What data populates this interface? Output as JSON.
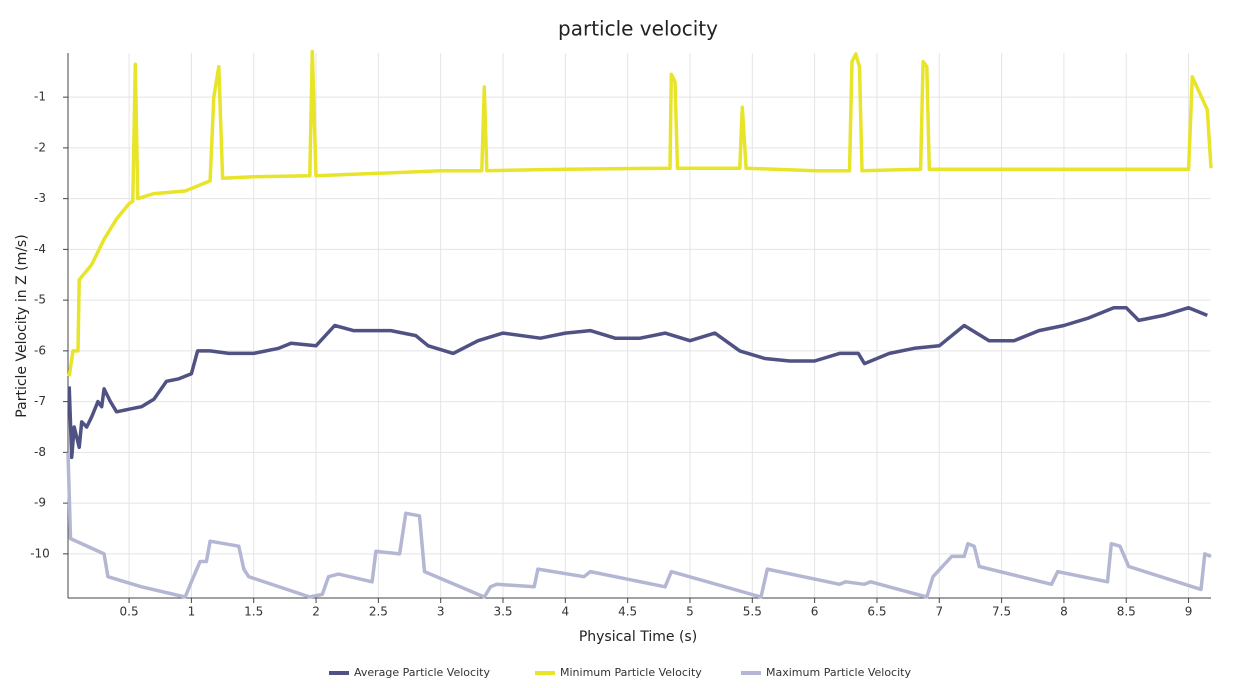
{
  "chart_data": {
    "type": "line",
    "title": "particle velocity",
    "x_label": "Physical Time (s)",
    "y_label": "Particle Velocity in Z (m/s)",
    "xlim": [
      0.01,
      9.18
    ],
    "ylim": [
      -10.87,
      -0.13
    ],
    "xticks": [
      0.5,
      1,
      1.5,
      2,
      2.5,
      3,
      3.5,
      4,
      4.5,
      5,
      5.5,
      6,
      6.5,
      7,
      7.5,
      8,
      8.5,
      9
    ],
    "yticks": [
      -10,
      -9,
      -8,
      -7,
      -6,
      -5,
      -4,
      -3,
      -2,
      -1
    ],
    "grid": true,
    "legend": "bottom",
    "series": [
      {
        "name": "Average Particle Velocity",
        "color": "#4f5283",
        "x": [
          0.02,
          0.04,
          0.06,
          0.1,
          0.12,
          0.16,
          0.2,
          0.25,
          0.28,
          0.3,
          0.35,
          0.4,
          0.5,
          0.6,
          0.7,
          0.8,
          0.9,
          1.0,
          1.05,
          1.15,
          1.3,
          1.5,
          1.7,
          1.8,
          2.0,
          2.15,
          2.3,
          2.6,
          2.8,
          2.9,
          3.1,
          3.3,
          3.5,
          3.8,
          4.0,
          4.2,
          4.4,
          4.6,
          4.8,
          5.0,
          5.2,
          5.4,
          5.6,
          5.8,
          6.0,
          6.2,
          6.35,
          6.4,
          6.6,
          6.8,
          7.0,
          7.2,
          7.4,
          7.6,
          7.8,
          8.0,
          8.2,
          8.4,
          8.5,
          8.6,
          8.8,
          9.0,
          9.15
        ],
        "values": [
          -6.7,
          -8.1,
          -7.5,
          -7.9,
          -7.4,
          -7.5,
          -7.3,
          -7.0,
          -7.1,
          -6.75,
          -7.0,
          -7.2,
          -7.15,
          -7.1,
          -6.95,
          -6.6,
          -6.55,
          -6.45,
          -6.0,
          -6.0,
          -6.05,
          -6.05,
          -5.95,
          -5.85,
          -5.9,
          -5.5,
          -5.6,
          -5.6,
          -5.7,
          -5.9,
          -6.05,
          -5.8,
          -5.65,
          -5.75,
          -5.65,
          -5.6,
          -5.75,
          -5.75,
          -5.65,
          -5.8,
          -5.65,
          -6.0,
          -6.15,
          -6.2,
          -6.2,
          -6.05,
          -6.05,
          -6.25,
          -6.05,
          -5.95,
          -5.9,
          -5.5,
          -5.8,
          -5.8,
          -5.6,
          -5.5,
          -5.35,
          -5.15,
          -5.15,
          -5.4,
          -5.3,
          -5.15,
          -5.3
        ]
      },
      {
        "name": "Minimum Particle Velocity",
        "color": "#e8e42a",
        "x": [
          0.02,
          0.05,
          0.09,
          0.1,
          0.2,
          0.3,
          0.4,
          0.5,
          0.53,
          0.55,
          0.57,
          0.7,
          0.95,
          1.15,
          1.18,
          1.22,
          1.25,
          1.5,
          1.95,
          1.97,
          2.0,
          2.5,
          3.0,
          3.33,
          3.35,
          3.37,
          4.0,
          4.84,
          4.85,
          4.88,
          4.9,
          5.4,
          5.42,
          5.45,
          6.0,
          6.28,
          6.3,
          6.33,
          6.36,
          6.38,
          6.85,
          6.87,
          6.9,
          6.92,
          7.5,
          8.0,
          9.0,
          9.03,
          9.15,
          9.18
        ],
        "values": [
          -6.5,
          -6.0,
          -6.0,
          -4.6,
          -4.3,
          -3.8,
          -3.4,
          -3.1,
          -3.05,
          -0.35,
          -3.0,
          -2.9,
          -2.85,
          -2.65,
          -1.0,
          -0.4,
          -2.6,
          -2.57,
          -2.55,
          -0.1,
          -2.55,
          -2.5,
          -2.45,
          -2.45,
          -0.8,
          -2.45,
          -2.42,
          -2.4,
          -0.55,
          -0.7,
          -2.4,
          -2.4,
          -1.2,
          -2.4,
          -2.45,
          -2.45,
          -0.3,
          -0.15,
          -0.4,
          -2.45,
          -2.42,
          -0.3,
          -0.4,
          -2.42,
          -2.42,
          -2.42,
          -2.42,
          -0.6,
          -1.25,
          -2.4
        ]
      },
      {
        "name": "Maximum Particle Velocity",
        "color": "#b4b7d3",
        "x": [
          0.01,
          0.03,
          0.3,
          0.33,
          0.6,
          0.95,
          1.0,
          1.07,
          1.12,
          1.15,
          1.38,
          1.42,
          1.46,
          1.95,
          2.05,
          2.1,
          2.18,
          2.45,
          2.48,
          2.67,
          2.72,
          2.83,
          2.87,
          3.35,
          3.4,
          3.45,
          3.75,
          3.78,
          4.15,
          4.2,
          4.8,
          4.85,
          5.57,
          5.62,
          6.2,
          6.25,
          6.4,
          6.45,
          6.9,
          6.95,
          7.1,
          7.2,
          7.23,
          7.28,
          7.32,
          7.9,
          7.95,
          8.35,
          8.38,
          8.45,
          8.52,
          9.1,
          9.13,
          9.18
        ],
        "values": [
          -8.0,
          -9.7,
          -10.0,
          -10.45,
          -10.65,
          -10.85,
          -10.55,
          -10.15,
          -10.15,
          -9.75,
          -9.85,
          -10.3,
          -10.45,
          -10.85,
          -10.8,
          -10.45,
          -10.4,
          -10.55,
          -9.95,
          -10.0,
          -9.2,
          -9.25,
          -10.35,
          -10.85,
          -10.65,
          -10.6,
          -10.65,
          -10.3,
          -10.45,
          -10.35,
          -10.65,
          -10.35,
          -10.85,
          -10.3,
          -10.6,
          -10.55,
          -10.6,
          -10.55,
          -10.85,
          -10.45,
          -10.05,
          -10.05,
          -9.8,
          -9.85,
          -10.25,
          -10.6,
          -10.35,
          -10.55,
          -9.8,
          -9.85,
          -10.25,
          -10.7,
          -10.0,
          -10.05
        ]
      }
    ]
  }
}
